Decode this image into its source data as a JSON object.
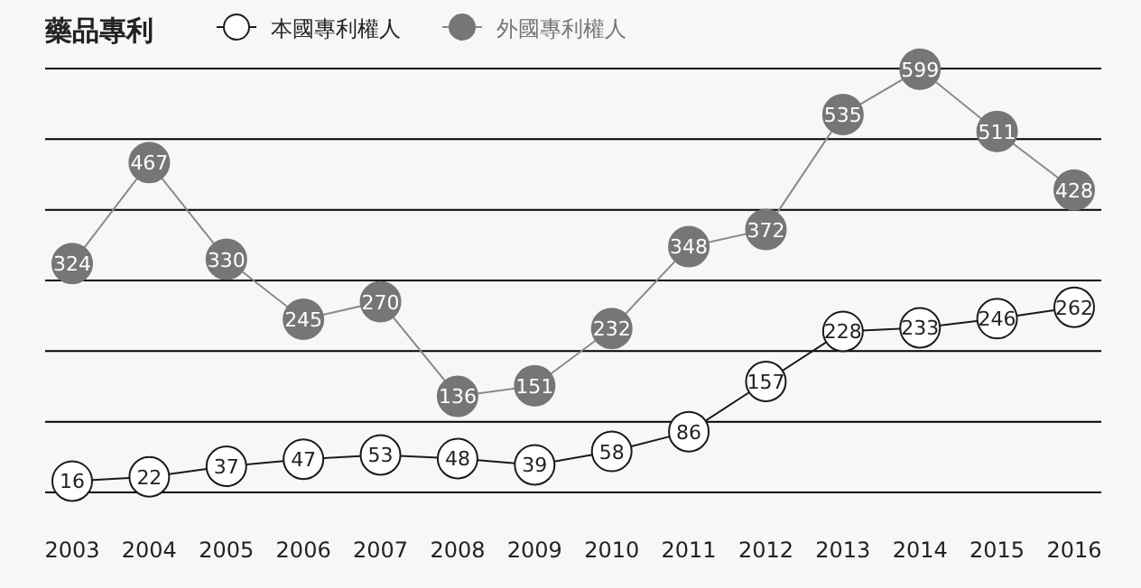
{
  "chart_data": {
    "type": "line",
    "title": "藥品專利",
    "categories": [
      "2003",
      "2004",
      "2005",
      "2006",
      "2007",
      "2008",
      "2009",
      "2010",
      "2011",
      "2012",
      "2013",
      "2014",
      "2015",
      "2016"
    ],
    "series": [
      {
        "name": "本國專利權人",
        "color": "#1a1a1a",
        "values": [
          16,
          22,
          37,
          47,
          53,
          48,
          39,
          58,
          86,
          157,
          228,
          233,
          246,
          262
        ]
      },
      {
        "name": "外國專利權人",
        "color": "#767676",
        "values": [
          324,
          467,
          330,
          245,
          270,
          136,
          151,
          232,
          348,
          372,
          535,
          599,
          511,
          428
        ]
      }
    ],
    "ylim": [
      0,
      600
    ],
    "yticks": [
      {
        "value": 0,
        "label": null
      },
      {
        "value": 100,
        "label": null
      },
      {
        "value": 200,
        "label": null
      },
      {
        "value": 300,
        "label": null
      },
      {
        "value": 400,
        "label": null
      },
      {
        "value": 500,
        "label": null
      },
      {
        "value": 600,
        "label": null
      }
    ],
    "grid": "y",
    "legend": "top left",
    "marker": "circle",
    "data_labels": true,
    "tick_labels": "x"
  }
}
